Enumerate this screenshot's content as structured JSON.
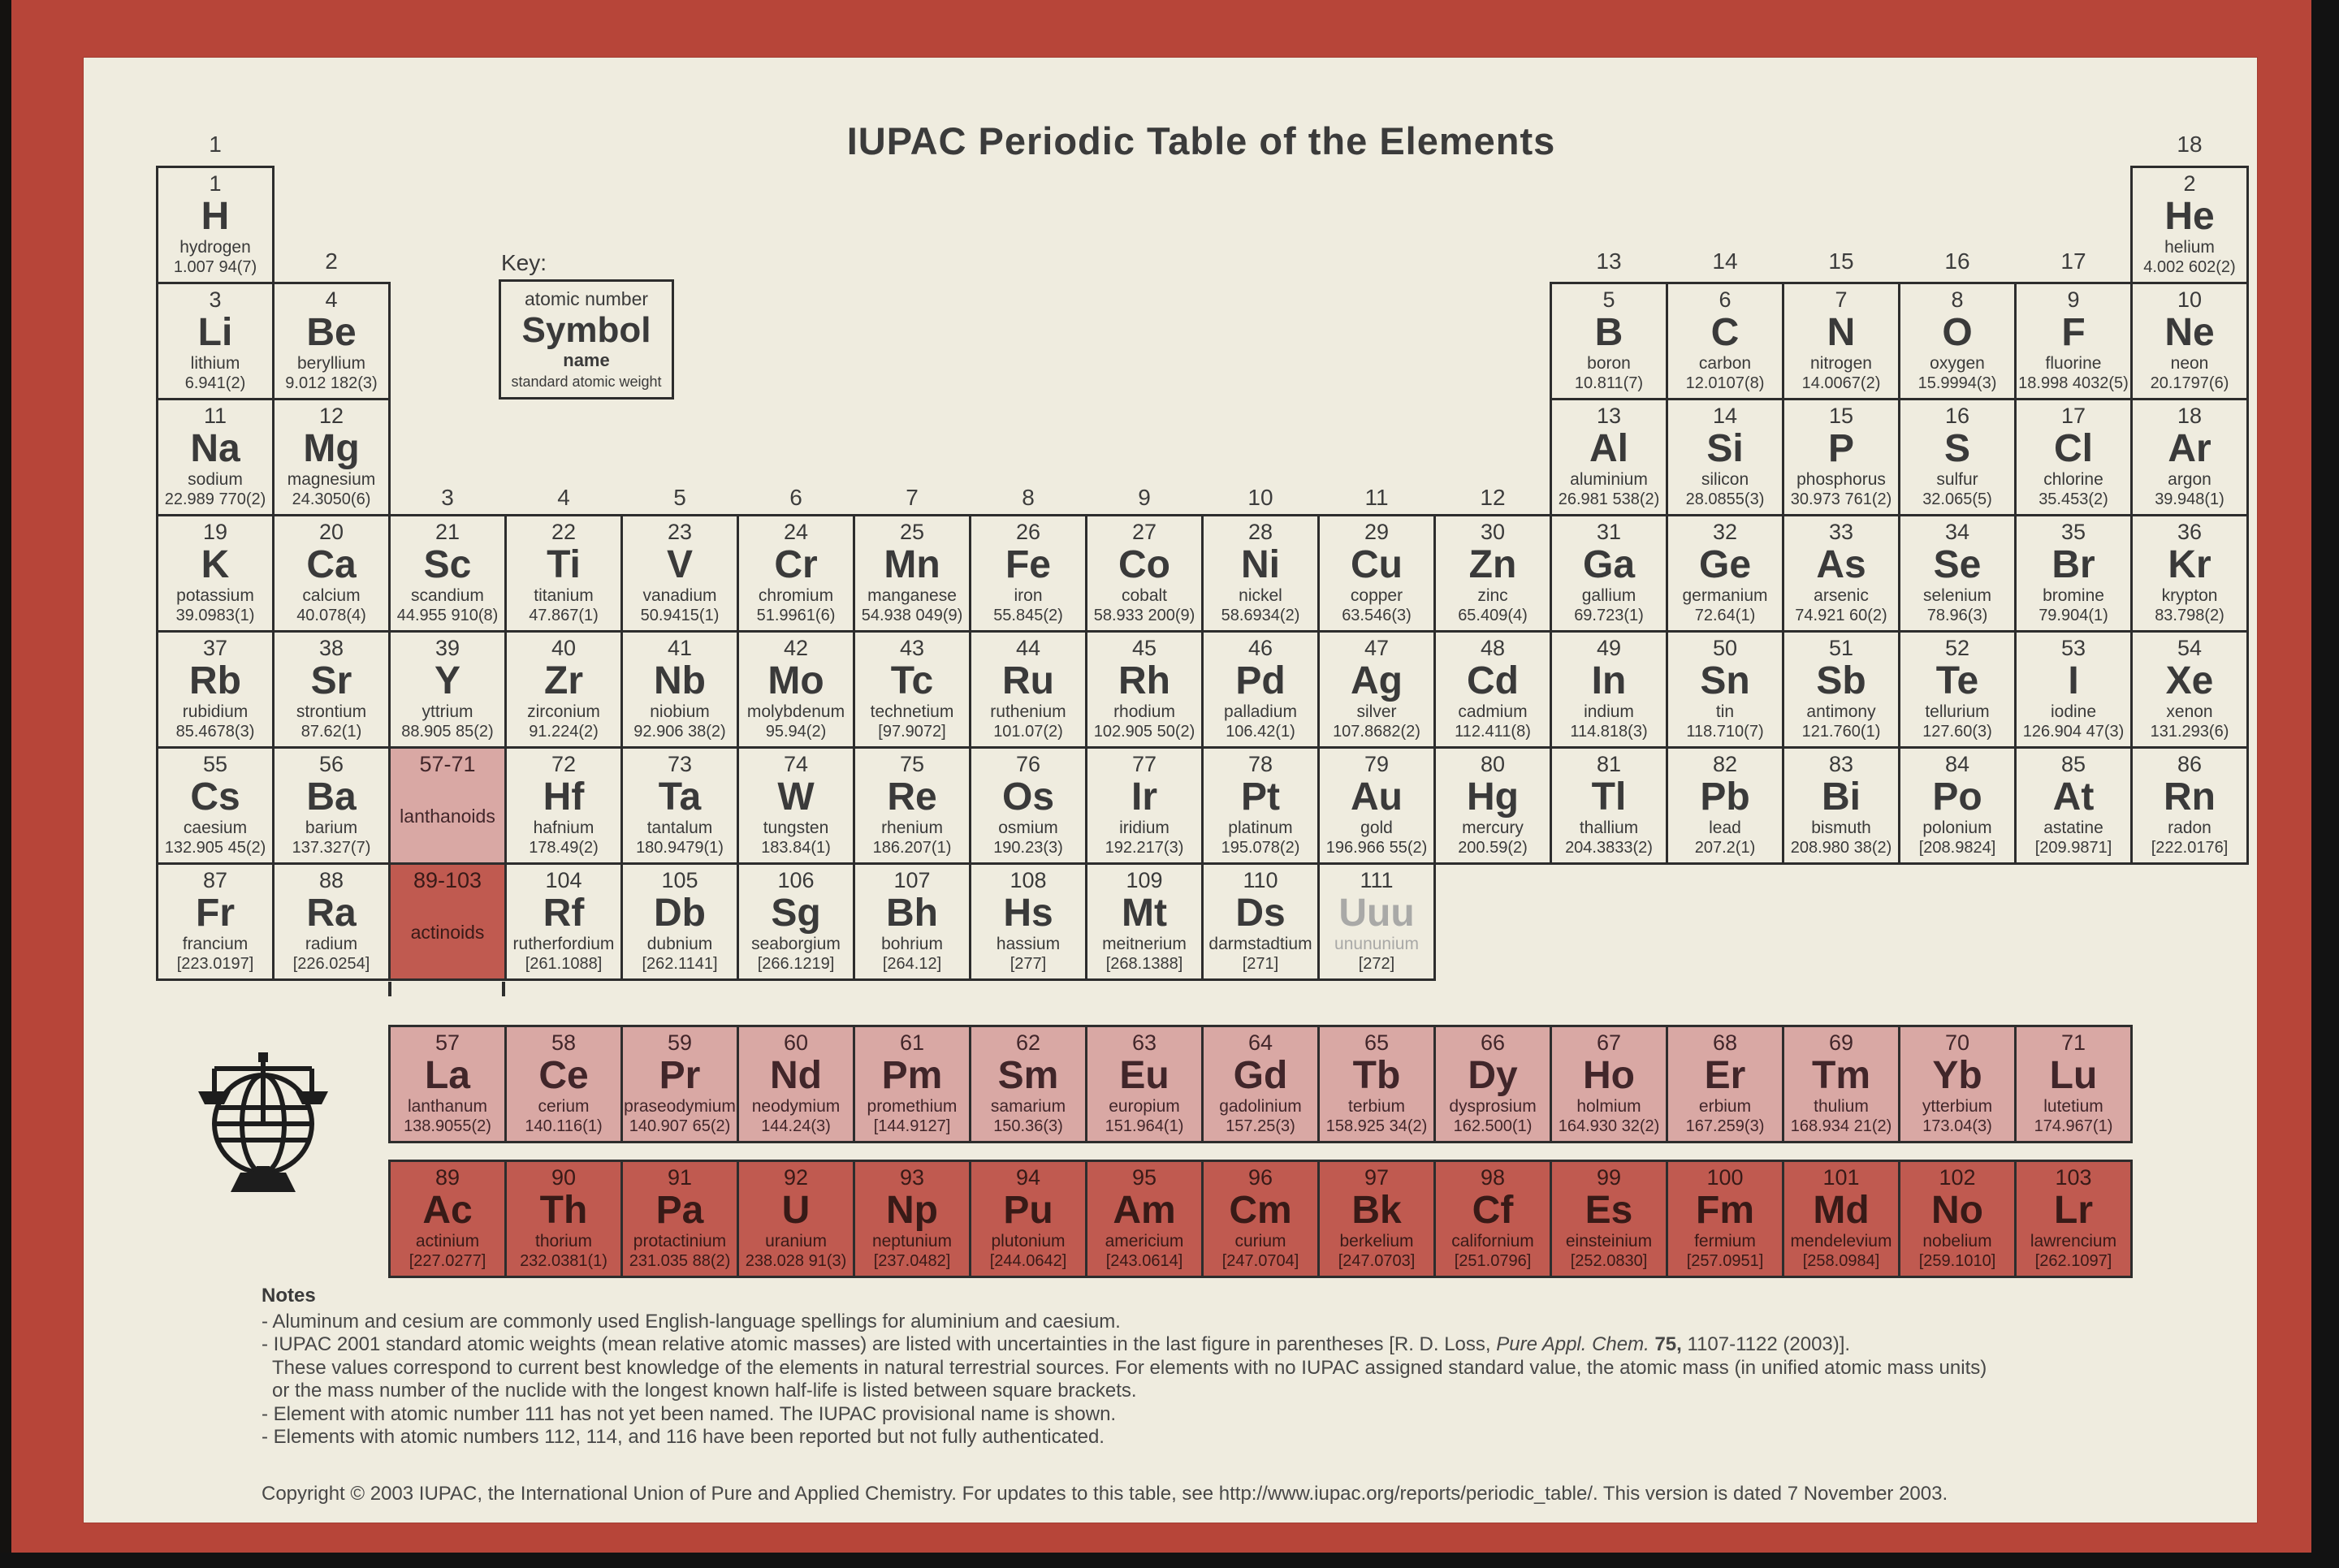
{
  "title": "IUPAC Periodic Table of the Elements",
  "key": {
    "label": "Key:",
    "atomic_number": "atomic number",
    "symbol": "Symbol",
    "name": "name",
    "weight": "standard atomic weight"
  },
  "group_labels": [
    {
      "g": "1",
      "col": 1,
      "band": "a"
    },
    {
      "g": "2",
      "col": 2,
      "band": "b"
    },
    {
      "g": "3",
      "col": 3,
      "band": "c"
    },
    {
      "g": "4",
      "col": 4,
      "band": "c"
    },
    {
      "g": "5",
      "col": 5,
      "band": "c"
    },
    {
      "g": "6",
      "col": 6,
      "band": "c"
    },
    {
      "g": "7",
      "col": 7,
      "band": "c"
    },
    {
      "g": "8",
      "col": 8,
      "band": "c"
    },
    {
      "g": "9",
      "col": 9,
      "band": "c"
    },
    {
      "g": "10",
      "col": 10,
      "band": "c"
    },
    {
      "g": "11",
      "col": 11,
      "band": "c"
    },
    {
      "g": "12",
      "col": 12,
      "band": "c"
    },
    {
      "g": "13",
      "col": 13,
      "band": "b"
    },
    {
      "g": "14",
      "col": 14,
      "band": "b"
    },
    {
      "g": "15",
      "col": 15,
      "band": "b"
    },
    {
      "g": "16",
      "col": 16,
      "band": "b"
    },
    {
      "g": "17",
      "col": 17,
      "band": "b"
    },
    {
      "g": "18",
      "col": 18,
      "band": "a"
    }
  ],
  "elements": [
    {
      "n": "1",
      "s": "H",
      "name": "hydrogen",
      "w": "1.007 94(7)",
      "c": 1,
      "p": 1
    },
    {
      "n": "2",
      "s": "He",
      "name": "helium",
      "w": "4.002 602(2)",
      "c": 18,
      "p": 1
    },
    {
      "n": "3",
      "s": "Li",
      "name": "lithium",
      "w": "6.941(2)",
      "c": 1,
      "p": 2
    },
    {
      "n": "4",
      "s": "Be",
      "name": "beryllium",
      "w": "9.012 182(3)",
      "c": 2,
      "p": 2
    },
    {
      "n": "5",
      "s": "B",
      "name": "boron",
      "w": "10.811(7)",
      "c": 13,
      "p": 2
    },
    {
      "n": "6",
      "s": "C",
      "name": "carbon",
      "w": "12.0107(8)",
      "c": 14,
      "p": 2
    },
    {
      "n": "7",
      "s": "N",
      "name": "nitrogen",
      "w": "14.0067(2)",
      "c": 15,
      "p": 2
    },
    {
      "n": "8",
      "s": "O",
      "name": "oxygen",
      "w": "15.9994(3)",
      "c": 16,
      "p": 2
    },
    {
      "n": "9",
      "s": "F",
      "name": "fluorine",
      "w": "18.998 4032(5)",
      "c": 17,
      "p": 2
    },
    {
      "n": "10",
      "s": "Ne",
      "name": "neon",
      "w": "20.1797(6)",
      "c": 18,
      "p": 2
    },
    {
      "n": "11",
      "s": "Na",
      "name": "sodium",
      "w": "22.989 770(2)",
      "c": 1,
      "p": 3
    },
    {
      "n": "12",
      "s": "Mg",
      "name": "magnesium",
      "w": "24.3050(6)",
      "c": 2,
      "p": 3
    },
    {
      "n": "13",
      "s": "Al",
      "name": "aluminium",
      "w": "26.981 538(2)",
      "c": 13,
      "p": 3
    },
    {
      "n": "14",
      "s": "Si",
      "name": "silicon",
      "w": "28.0855(3)",
      "c": 14,
      "p": 3
    },
    {
      "n": "15",
      "s": "P",
      "name": "phosphorus",
      "w": "30.973 761(2)",
      "c": 15,
      "p": 3
    },
    {
      "n": "16",
      "s": "S",
      "name": "sulfur",
      "w": "32.065(5)",
      "c": 16,
      "p": 3
    },
    {
      "n": "17",
      "s": "Cl",
      "name": "chlorine",
      "w": "35.453(2)",
      "c": 17,
      "p": 3
    },
    {
      "n": "18",
      "s": "Ar",
      "name": "argon",
      "w": "39.948(1)",
      "c": 18,
      "p": 3
    },
    {
      "n": "19",
      "s": "K",
      "name": "potassium",
      "w": "39.0983(1)",
      "c": 1,
      "p": 4
    },
    {
      "n": "20",
      "s": "Ca",
      "name": "calcium",
      "w": "40.078(4)",
      "c": 2,
      "p": 4
    },
    {
      "n": "21",
      "s": "Sc",
      "name": "scandium",
      "w": "44.955 910(8)",
      "c": 3,
      "p": 4
    },
    {
      "n": "22",
      "s": "Ti",
      "name": "titanium",
      "w": "47.867(1)",
      "c": 4,
      "p": 4
    },
    {
      "n": "23",
      "s": "V",
      "name": "vanadium",
      "w": "50.9415(1)",
      "c": 5,
      "p": 4
    },
    {
      "n": "24",
      "s": "Cr",
      "name": "chromium",
      "w": "51.9961(6)",
      "c": 6,
      "p": 4
    },
    {
      "n": "25",
      "s": "Mn",
      "name": "manganese",
      "w": "54.938 049(9)",
      "c": 7,
      "p": 4
    },
    {
      "n": "26",
      "s": "Fe",
      "name": "iron",
      "w": "55.845(2)",
      "c": 8,
      "p": 4
    },
    {
      "n": "27",
      "s": "Co",
      "name": "cobalt",
      "w": "58.933 200(9)",
      "c": 9,
      "p": 4
    },
    {
      "n": "28",
      "s": "Ni",
      "name": "nickel",
      "w": "58.6934(2)",
      "c": 10,
      "p": 4
    },
    {
      "n": "29",
      "s": "Cu",
      "name": "copper",
      "w": "63.546(3)",
      "c": 11,
      "p": 4
    },
    {
      "n": "30",
      "s": "Zn",
      "name": "zinc",
      "w": "65.409(4)",
      "c": 12,
      "p": 4
    },
    {
      "n": "31",
      "s": "Ga",
      "name": "gallium",
      "w": "69.723(1)",
      "c": 13,
      "p": 4
    },
    {
      "n": "32",
      "s": "Ge",
      "name": "germanium",
      "w": "72.64(1)",
      "c": 14,
      "p": 4
    },
    {
      "n": "33",
      "s": "As",
      "name": "arsenic",
      "w": "74.921 60(2)",
      "c": 15,
      "p": 4
    },
    {
      "n": "34",
      "s": "Se",
      "name": "selenium",
      "w": "78.96(3)",
      "c": 16,
      "p": 4
    },
    {
      "n": "35",
      "s": "Br",
      "name": "bromine",
      "w": "79.904(1)",
      "c": 17,
      "p": 4
    },
    {
      "n": "36",
      "s": "Kr",
      "name": "krypton",
      "w": "83.798(2)",
      "c": 18,
      "p": 4
    },
    {
      "n": "37",
      "s": "Rb",
      "name": "rubidium",
      "w": "85.4678(3)",
      "c": 1,
      "p": 5
    },
    {
      "n": "38",
      "s": "Sr",
      "name": "strontium",
      "w": "87.62(1)",
      "c": 2,
      "p": 5
    },
    {
      "n": "39",
      "s": "Y",
      "name": "yttrium",
      "w": "88.905 85(2)",
      "c": 3,
      "p": 5
    },
    {
      "n": "40",
      "s": "Zr",
      "name": "zirconium",
      "w": "91.224(2)",
      "c": 4,
      "p": 5
    },
    {
      "n": "41",
      "s": "Nb",
      "name": "niobium",
      "w": "92.906 38(2)",
      "c": 5,
      "p": 5
    },
    {
      "n": "42",
      "s": "Mo",
      "name": "molybdenum",
      "w": "95.94(2)",
      "c": 6,
      "p": 5
    },
    {
      "n": "43",
      "s": "Tc",
      "name": "technetium",
      "w": "[97.9072]",
      "c": 7,
      "p": 5
    },
    {
      "n": "44",
      "s": "Ru",
      "name": "ruthenium",
      "w": "101.07(2)",
      "c": 8,
      "p": 5
    },
    {
      "n": "45",
      "s": "Rh",
      "name": "rhodium",
      "w": "102.905 50(2)",
      "c": 9,
      "p": 5
    },
    {
      "n": "46",
      "s": "Pd",
      "name": "palladium",
      "w": "106.42(1)",
      "c": 10,
      "p": 5
    },
    {
      "n": "47",
      "s": "Ag",
      "name": "silver",
      "w": "107.8682(2)",
      "c": 11,
      "p": 5
    },
    {
      "n": "48",
      "s": "Cd",
      "name": "cadmium",
      "w": "112.411(8)",
      "c": 12,
      "p": 5
    },
    {
      "n": "49",
      "s": "In",
      "name": "indium",
      "w": "114.818(3)",
      "c": 13,
      "p": 5
    },
    {
      "n": "50",
      "s": "Sn",
      "name": "tin",
      "w": "118.710(7)",
      "c": 14,
      "p": 5
    },
    {
      "n": "51",
      "s": "Sb",
      "name": "antimony",
      "w": "121.760(1)",
      "c": 15,
      "p": 5
    },
    {
      "n": "52",
      "s": "Te",
      "name": "tellurium",
      "w": "127.60(3)",
      "c": 16,
      "p": 5
    },
    {
      "n": "53",
      "s": "I",
      "name": "iodine",
      "w": "126.904 47(3)",
      "c": 17,
      "p": 5
    },
    {
      "n": "54",
      "s": "Xe",
      "name": "xenon",
      "w": "131.293(6)",
      "c": 18,
      "p": 5
    },
    {
      "n": "55",
      "s": "Cs",
      "name": "caesium",
      "w": "132.905 45(2)",
      "c": 1,
      "p": 6
    },
    {
      "n": "56",
      "s": "Ba",
      "name": "barium",
      "w": "137.327(7)",
      "c": 2,
      "p": 6
    },
    {
      "n": "72",
      "s": "Hf",
      "name": "hafnium",
      "w": "178.49(2)",
      "c": 4,
      "p": 6
    },
    {
      "n": "73",
      "s": "Ta",
      "name": "tantalum",
      "w": "180.9479(1)",
      "c": 5,
      "p": 6
    },
    {
      "n": "74",
      "s": "W",
      "name": "tungsten",
      "w": "183.84(1)",
      "c": 6,
      "p": 6
    },
    {
      "n": "75",
      "s": "Re",
      "name": "rhenium",
      "w": "186.207(1)",
      "c": 7,
      "p": 6
    },
    {
      "n": "76",
      "s": "Os",
      "name": "osmium",
      "w": "190.23(3)",
      "c": 8,
      "p": 6
    },
    {
      "n": "77",
      "s": "Ir",
      "name": "iridium",
      "w": "192.217(3)",
      "c": 9,
      "p": 6
    },
    {
      "n": "78",
      "s": "Pt",
      "name": "platinum",
      "w": "195.078(2)",
      "c": 10,
      "p": 6
    },
    {
      "n": "79",
      "s": "Au",
      "name": "gold",
      "w": "196.966 55(2)",
      "c": 11,
      "p": 6
    },
    {
      "n": "80",
      "s": "Hg",
      "name": "mercury",
      "w": "200.59(2)",
      "c": 12,
      "p": 6
    },
    {
      "n": "81",
      "s": "Tl",
      "name": "thallium",
      "w": "204.3833(2)",
      "c": 13,
      "p": 6
    },
    {
      "n": "82",
      "s": "Pb",
      "name": "lead",
      "w": "207.2(1)",
      "c": 14,
      "p": 6
    },
    {
      "n": "83",
      "s": "Bi",
      "name": "bismuth",
      "w": "208.980 38(2)",
      "c": 15,
      "p": 6
    },
    {
      "n": "84",
      "s": "Po",
      "name": "polonium",
      "w": "[208.9824]",
      "c": 16,
      "p": 6
    },
    {
      "n": "85",
      "s": "At",
      "name": "astatine",
      "w": "[209.9871]",
      "c": 17,
      "p": 6
    },
    {
      "n": "86",
      "s": "Rn",
      "name": "radon",
      "w": "[222.0176]",
      "c": 18,
      "p": 6
    },
    {
      "n": "87",
      "s": "Fr",
      "name": "francium",
      "w": "[223.0197]",
      "c": 1,
      "p": 7
    },
    {
      "n": "88",
      "s": "Ra",
      "name": "radium",
      "w": "[226.0254]",
      "c": 2,
      "p": 7
    },
    {
      "n": "104",
      "s": "Rf",
      "name": "rutherfordium",
      "w": "[261.1088]",
      "c": 4,
      "p": 7
    },
    {
      "n": "105",
      "s": "Db",
      "name": "dubnium",
      "w": "[262.1141]",
      "c": 5,
      "p": 7
    },
    {
      "n": "106",
      "s": "Sg",
      "name": "seaborgium",
      "w": "[266.1219]",
      "c": 6,
      "p": 7
    },
    {
      "n": "107",
      "s": "Bh",
      "name": "bohrium",
      "w": "[264.12]",
      "c": 7,
      "p": 7
    },
    {
      "n": "108",
      "s": "Hs",
      "name": "hassium",
      "w": "[277]",
      "c": 8,
      "p": 7
    },
    {
      "n": "109",
      "s": "Mt",
      "name": "meitnerium",
      "w": "[268.1388]",
      "c": 9,
      "p": 7
    },
    {
      "n": "110",
      "s": "Ds",
      "name": "darmstadtium",
      "w": "[271]",
      "c": 10,
      "p": 7
    },
    {
      "n": "111",
      "s": "Uuu",
      "name": "unununium",
      "w": "[272]",
      "c": 11,
      "p": 7,
      "muted": true
    }
  ],
  "placeholders": [
    {
      "range": "57-71",
      "label": "lanthanoids",
      "c": 3,
      "p": 6,
      "style": "lan"
    },
    {
      "range": "89-103",
      "label": "actinoids",
      "c": 3,
      "p": 7,
      "style": "act"
    }
  ],
  "lanthanoids": [
    {
      "n": "57",
      "s": "La",
      "name": "lanthanum",
      "w": "138.9055(2)"
    },
    {
      "n": "58",
      "s": "Ce",
      "name": "cerium",
      "w": "140.116(1)"
    },
    {
      "n": "59",
      "s": "Pr",
      "name": "praseodymium",
      "w": "140.907 65(2)"
    },
    {
      "n": "60",
      "s": "Nd",
      "name": "neodymium",
      "w": "144.24(3)"
    },
    {
      "n": "61",
      "s": "Pm",
      "name": "promethium",
      "w": "[144.9127]"
    },
    {
      "n": "62",
      "s": "Sm",
      "name": "samarium",
      "w": "150.36(3)"
    },
    {
      "n": "63",
      "s": "Eu",
      "name": "europium",
      "w": "151.964(1)"
    },
    {
      "n": "64",
      "s": "Gd",
      "name": "gadolinium",
      "w": "157.25(3)"
    },
    {
      "n": "65",
      "s": "Tb",
      "name": "terbium",
      "w": "158.925 34(2)"
    },
    {
      "n": "66",
      "s": "Dy",
      "name": "dysprosium",
      "w": "162.500(1)"
    },
    {
      "n": "67",
      "s": "Ho",
      "name": "holmium",
      "w": "164.930 32(2)"
    },
    {
      "n": "68",
      "s": "Er",
      "name": "erbium",
      "w": "167.259(3)"
    },
    {
      "n": "69",
      "s": "Tm",
      "name": "thulium",
      "w": "168.934 21(2)"
    },
    {
      "n": "70",
      "s": "Yb",
      "name": "ytterbium",
      "w": "173.04(3)"
    },
    {
      "n": "71",
      "s": "Lu",
      "name": "lutetium",
      "w": "174.967(1)"
    }
  ],
  "actinoids": [
    {
      "n": "89",
      "s": "Ac",
      "name": "actinium",
      "w": "[227.0277]"
    },
    {
      "n": "90",
      "s": "Th",
      "name": "thorium",
      "w": "232.0381(1)"
    },
    {
      "n": "91",
      "s": "Pa",
      "name": "protactinium",
      "w": "231.035 88(2)"
    },
    {
      "n": "92",
      "s": "U",
      "name": "uranium",
      "w": "238.028 91(3)"
    },
    {
      "n": "93",
      "s": "Np",
      "name": "neptunium",
      "w": "[237.0482]"
    },
    {
      "n": "94",
      "s": "Pu",
      "name": "plutonium",
      "w": "[244.0642]"
    },
    {
      "n": "95",
      "s": "Am",
      "name": "americium",
      "w": "[243.0614]"
    },
    {
      "n": "96",
      "s": "Cm",
      "name": "curium",
      "w": "[247.0704]"
    },
    {
      "n": "97",
      "s": "Bk",
      "name": "berkelium",
      "w": "[247.0703]"
    },
    {
      "n": "98",
      "s": "Cf",
      "name": "californium",
      "w": "[251.0796]"
    },
    {
      "n": "99",
      "s": "Es",
      "name": "einsteinium",
      "w": "[252.0830]"
    },
    {
      "n": "100",
      "s": "Fm",
      "name": "fermium",
      "w": "[257.0951]"
    },
    {
      "n": "101",
      "s": "Md",
      "name": "mendelevium",
      "w": "[258.0984]"
    },
    {
      "n": "102",
      "s": "No",
      "name": "nobelium",
      "w": "[259.1010]"
    },
    {
      "n": "103",
      "s": "Lr",
      "name": "lawrencium",
      "w": "[262.1097]"
    }
  ],
  "notes": {
    "heading": "Notes",
    "lines": [
      {
        "indent": false,
        "segments": [
          {
            "t": "- Aluminum and cesium are commonly used English-language spellings for aluminium and caesium."
          }
        ]
      },
      {
        "indent": false,
        "segments": [
          {
            "t": "- IUPAC 2001 standard atomic weights (mean relative atomic masses) are listed with uncertainties in the last figure in parentheses [R. D. Loss, "
          },
          {
            "t": "Pure Appl. Chem.",
            "style": "i"
          },
          {
            "t": " "
          },
          {
            "t": "75,",
            "style": "b"
          },
          {
            "t": " 1107-1122 (2003)]."
          }
        ]
      },
      {
        "indent": true,
        "segments": [
          {
            "t": "These values correspond to current best knowledge of the elements in natural terrestrial sources. For elements with no IUPAC assigned standard value, the atomic mass (in unified atomic mass units)"
          }
        ]
      },
      {
        "indent": true,
        "segments": [
          {
            "t": "or the mass number of the nuclide with the longest known half-life is listed between square brackets."
          }
        ]
      },
      {
        "indent": false,
        "segments": [
          {
            "t": "- Element with atomic number 111 has not yet been named. The IUPAC provisional name is shown."
          }
        ]
      },
      {
        "indent": false,
        "segments": [
          {
            "t": "- Elements with atomic numbers 112, 114, and 116 have been reported but not fully authenticated."
          }
        ]
      }
    ]
  },
  "copyright": "Copyright © 2003 IUPAC, the International Union of Pure and Applied Chemistry. For updates to this table, see http://www.iupac.org/reports/periodic_table/. This version is dated 7 November 2003.",
  "colors": {
    "frame_red": "#b74539",
    "paper": "#efecdf",
    "lanthanoid_bg": "#d9a8a4",
    "actinoid_bg": "#c05a50",
    "ink": "#3a3a3a",
    "unnamed_gray": "#a9a9a7"
  },
  "logo": {
    "name": "iupac-logo",
    "description": "balance scales over globe emblem"
  }
}
